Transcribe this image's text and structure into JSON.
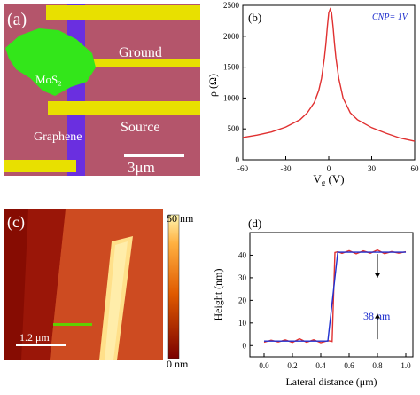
{
  "panel_a": {
    "label": "(a)",
    "labels": {
      "ground": "Ground",
      "mos2": "MoS₂",
      "source": "Source",
      "graphene": "Graphene"
    },
    "scalebar": "3μm",
    "colors": {
      "substrate": "#b8586e",
      "electrode": "#e8e000",
      "mos2": "#33e61a",
      "graphene": "#6a2fe0"
    }
  },
  "panel_c": {
    "label": "(c)",
    "colorbar_max": "50 nm",
    "colorbar_min": "0 nm",
    "scalebar": "1.2 μm",
    "colors": {
      "low": "#7a0000",
      "mid": "#e05a00",
      "high": "#fff6b0",
      "line": "#5fd000"
    }
  },
  "chart_data": [
    {
      "panel": "(b)",
      "type": "line",
      "title": "",
      "annotation": "CNP= 1V",
      "xlabel": "V_g (V)",
      "ylabel": "ρ (Ω)",
      "xlim": [
        -60,
        60
      ],
      "ylim": [
        0,
        2500
      ],
      "xticks": [
        -60,
        -30,
        0,
        30,
        60
      ],
      "yticks": [
        0,
        500,
        1000,
        1500,
        2000,
        2500
      ],
      "grid": false,
      "series": [
        {
          "color": "#e03030",
          "x": [
            -60,
            -50,
            -40,
            -30,
            -20,
            -15,
            -10,
            -7,
            -5,
            -3,
            -2,
            -1,
            0,
            1,
            2,
            3,
            4,
            5,
            7,
            10,
            15,
            20,
            30,
            40,
            50,
            60
          ],
          "y": [
            360,
            400,
            450,
            530,
            650,
            760,
            930,
            1120,
            1320,
            1650,
            1880,
            2150,
            2380,
            2440,
            2380,
            2150,
            1880,
            1650,
            1320,
            1000,
            760,
            650,
            520,
            430,
            350,
            300
          ]
        }
      ]
    },
    {
      "panel": "(d)",
      "type": "line",
      "title": "",
      "xlabel": "Lateral distance (μm)",
      "ylabel": "Height (nm)",
      "annotation": "38 nm",
      "xlim": [
        -0.1,
        1.05
      ],
      "ylim": [
        -5,
        50
      ],
      "xticks": [
        0.0,
        0.2,
        0.4,
        0.6,
        0.8,
        1.0
      ],
      "yticks": [
        0,
        10,
        20,
        30,
        40
      ],
      "grid": false,
      "series": [
        {
          "color": "#e03030",
          "x": [
            0.0,
            0.05,
            0.1,
            0.15,
            0.2,
            0.25,
            0.3,
            0.35,
            0.4,
            0.45,
            0.48,
            0.5,
            0.52,
            0.55,
            0.6,
            0.65,
            0.7,
            0.75,
            0.8,
            0.85,
            0.9,
            0.95,
            1.0
          ],
          "y": [
            1.5,
            2.4,
            1.6,
            2.5,
            1.4,
            3.0,
            1.5,
            2.6,
            1.3,
            2.2,
            1.8,
            41.2,
            41.5,
            40.8,
            42.0,
            40.6,
            41.9,
            40.9,
            42.3,
            40.7,
            41.6,
            40.9,
            41.5
          ]
        },
        {
          "color": "#2030d0",
          "x": [
            0.0,
            0.45,
            0.52,
            1.0
          ],
          "y": [
            2.0,
            2.0,
            41.3,
            41.3
          ]
        }
      ]
    }
  ]
}
